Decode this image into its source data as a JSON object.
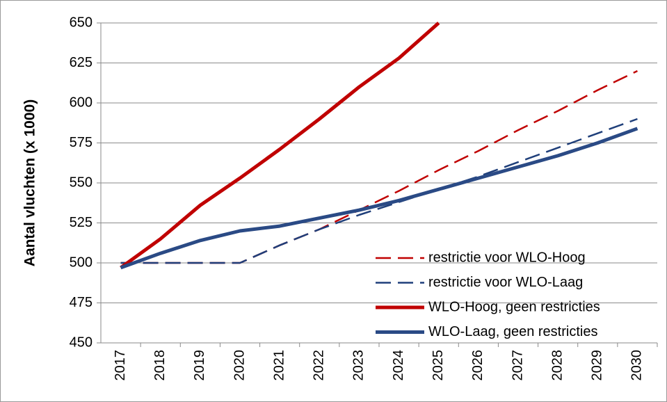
{
  "chart_data": {
    "type": "line",
    "y_label": "Aantal vluchten (x 1000)",
    "categories": [
      "2017",
      "2018",
      "2019",
      "2020",
      "2021",
      "2022",
      "2023",
      "2024",
      "2025",
      "2026",
      "2027",
      "2028",
      "2029",
      "2030"
    ],
    "series": [
      {
        "name": "restrictie voor WLO-Hoog",
        "color": "#c00000",
        "dashed": true,
        "values": [
          500,
          500,
          500,
          500,
          511,
          521,
          533,
          545,
          558,
          570,
          583,
          595,
          608,
          620
        ]
      },
      {
        "name": "restrictie voor WLO-Laag",
        "color": "#1f3f7a",
        "dashed": true,
        "values": [
          500,
          500,
          500,
          500,
          511,
          521,
          530,
          538,
          546,
          554,
          563,
          572,
          581,
          590
        ]
      },
      {
        "name": "WLO-Hoog, geen restricties",
        "color": "#c00000",
        "dashed": false,
        "values": [
          497,
          515,
          536,
          553,
          571,
          590,
          610,
          628,
          650,
          null,
          null,
          null,
          null,
          null
        ]
      },
      {
        "name": "WLO-Laag, geen restricties",
        "color": "#2a4a85",
        "dashed": false,
        "values": [
          497,
          506,
          514,
          520,
          523,
          528,
          533,
          539,
          546,
          553,
          560,
          567,
          575,
          584
        ]
      }
    ],
    "ylim": [
      450,
      650
    ],
    "yticks": [
      450,
      475,
      500,
      525,
      550,
      575,
      600,
      625,
      650
    ],
    "grid": true,
    "legend": "bottom-right"
  }
}
